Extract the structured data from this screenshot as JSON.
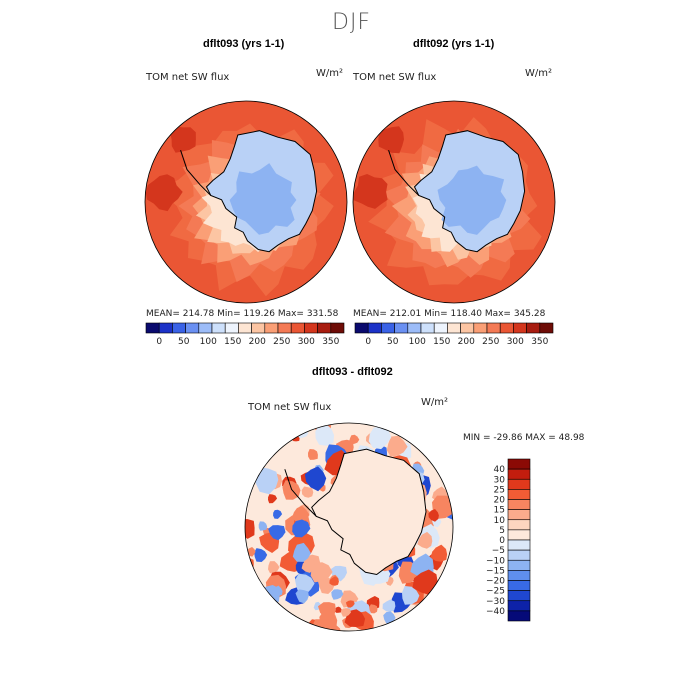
{
  "page": {
    "title": "DJF"
  },
  "chart_data": [
    {
      "type": "heatmap",
      "projection": "south-polar-stereographic",
      "title": "dflt093 (yrs 1-1)",
      "variable": "TOM net SW flux",
      "units": "W/m²",
      "stats": {
        "mean": 214.78,
        "min": 119.26,
        "max": 331.58
      },
      "stats_text": "MEAN= 214.78   Min= 119.26   Max= 331.58",
      "colorbar_levels": [
        0,
        50,
        100,
        150,
        200,
        250,
        300,
        350
      ],
      "colorbar_labels": [
        "0",
        "50",
        "100",
        "150",
        "200",
        "250",
        "300",
        "350"
      ],
      "colorbar_colors": [
        "#0a0a6e",
        "#1c32c8",
        "#3a62e6",
        "#6a90f2",
        "#9cbcf8",
        "#cde0fb",
        "#eef4fd",
        "#fde5d3",
        "#fcc5a3",
        "#fa9f76",
        "#f47a55",
        "#ea5634",
        "#d4361d",
        "#a81d10",
        "#6e0c07"
      ]
    },
    {
      "type": "heatmap",
      "projection": "south-polar-stereographic",
      "title": "dflt092 (yrs 1-1)",
      "variable": "TOM net SW flux",
      "units": "W/m²",
      "stats": {
        "mean": 212.01,
        "min": 118.4,
        "max": 345.28
      },
      "stats_text": "MEAN= 212.01   Min= 118.40   Max= 345.28",
      "colorbar_levels": [
        0,
        50,
        100,
        150,
        200,
        250,
        300,
        350
      ],
      "colorbar_labels": [
        "0",
        "50",
        "100",
        "150",
        "200",
        "250",
        "300",
        "350"
      ],
      "colorbar_colors": [
        "#0a0a6e",
        "#1c32c8",
        "#3a62e6",
        "#6a90f2",
        "#9cbcf8",
        "#cde0fb",
        "#eef4fd",
        "#fde5d3",
        "#fcc5a3",
        "#fa9f76",
        "#f47a55",
        "#ea5634",
        "#d4361d",
        "#a81d10",
        "#6e0c07"
      ]
    },
    {
      "type": "heatmap",
      "projection": "south-polar-stereographic",
      "title": "dflt093 - dflt092",
      "variable": "TOM net SW flux",
      "units": "W/m²",
      "stats": {
        "min": -29.86,
        "max": 48.98
      },
      "stats_text": "MIN = -29.86  MAX =  48.98",
      "colorbar_levels": [
        40,
        30,
        25,
        20,
        15,
        10,
        5,
        0,
        -5,
        -10,
        -15,
        -20,
        -25,
        -30,
        -40
      ],
      "colorbar_labels": [
        "40",
        "30",
        "25",
        "20",
        "15",
        "10",
        "5",
        "0",
        "−5",
        "−10",
        "−15",
        "−20",
        "−25",
        "−30",
        "−40"
      ],
      "colorbar_colors": [
        "#8b0a05",
        "#c21d0e",
        "#e0391c",
        "#f25c35",
        "#f78560",
        "#fbab8c",
        "#fdd5c0",
        "#fde9dc",
        "#dce8f8",
        "#b9d1f6",
        "#8db3f2",
        "#5f8fee",
        "#386ae6",
        "#1f47d0",
        "#0d22a8",
        "#050a78"
      ]
    }
  ]
}
